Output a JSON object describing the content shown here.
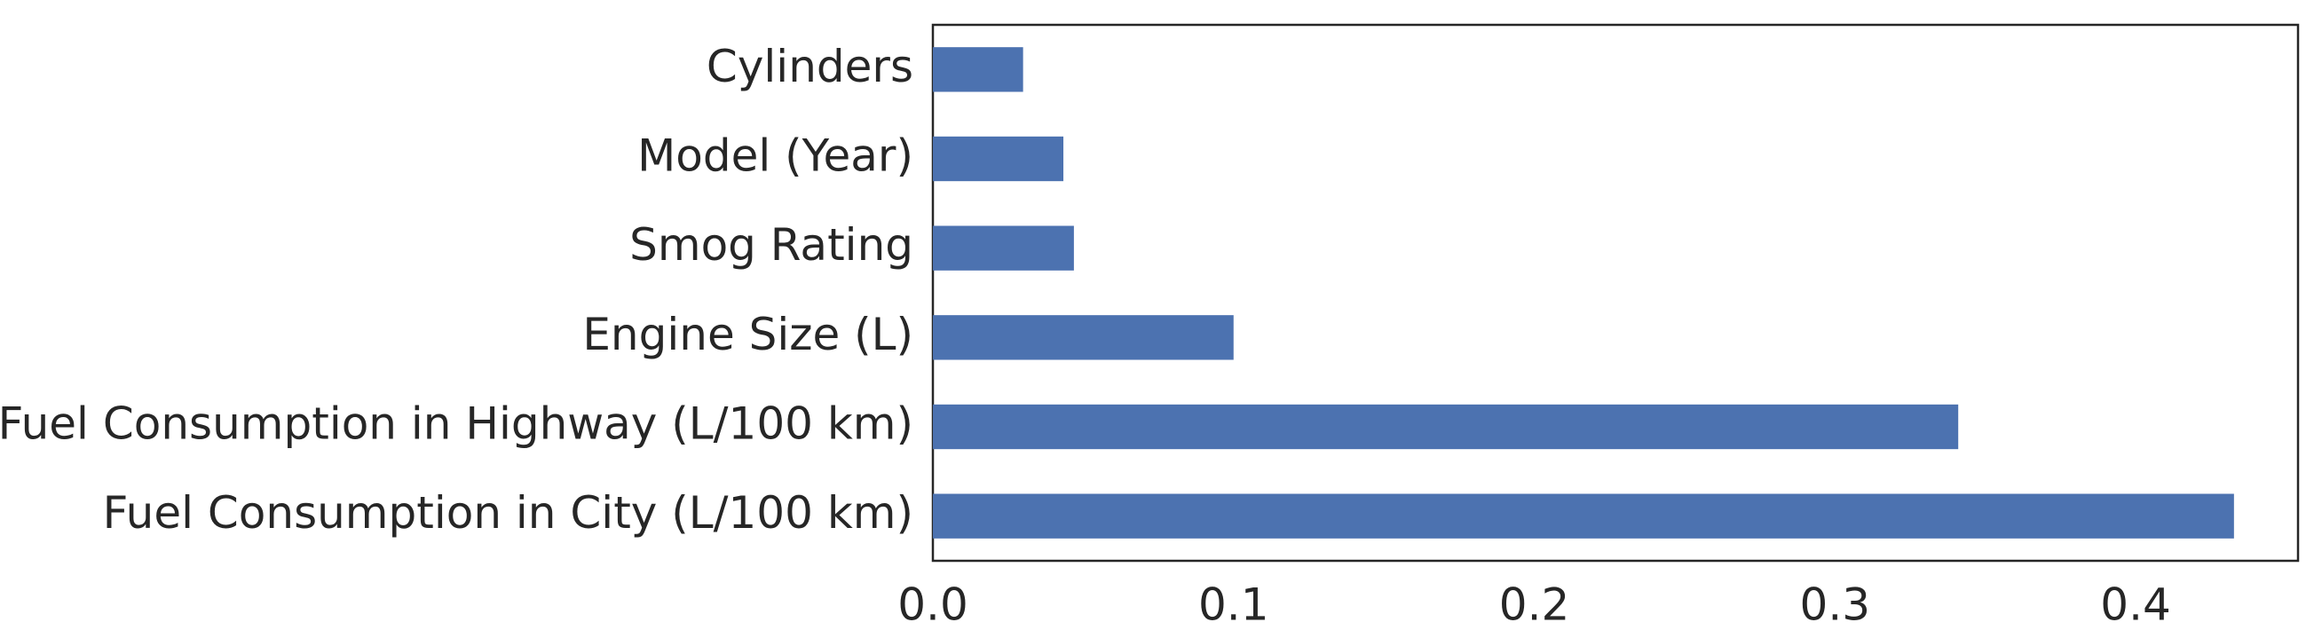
{
  "chart_data": {
    "type": "barh",
    "categories": [
      "Cylinders",
      "Model (Year)",
      "Smog Rating",
      "Engine Size (L)",
      "Fuel Consumption in Highway (L/100 km)",
      "Fuel Consumption in City (L/100 km)"
    ],
    "values": [
      0.03,
      0.0434,
      0.0469,
      0.1,
      0.341,
      0.4327
    ],
    "color": "#4c72b0",
    "xlim": [
      0,
      0.454
    ],
    "xticks": [
      {
        "value": 0,
        "label": "0.0"
      },
      0.1,
      0.2,
      0.3,
      0.4
    ],
    "grid": false
  }
}
